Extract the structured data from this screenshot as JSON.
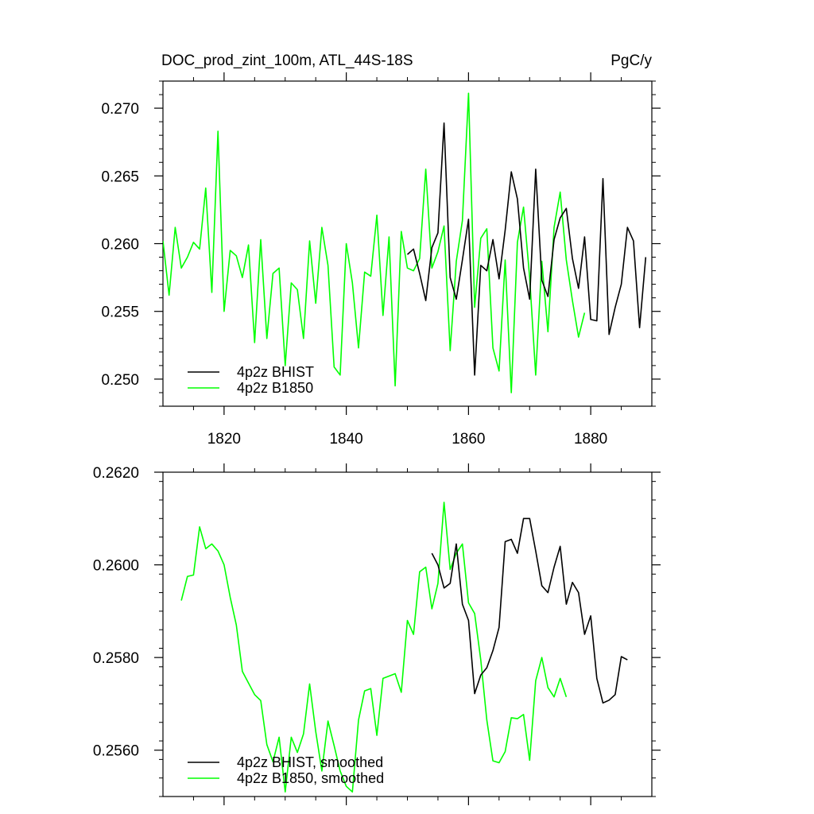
{
  "header": {
    "title": "DOC_prod_zint_100m, ATL_44S-18S",
    "units": "PgC/y"
  },
  "chart_data": [
    {
      "type": "line",
      "xlim": [
        1810,
        1890
      ],
      "ylim": [
        0.248,
        0.272
      ],
      "xticks": [
        1820,
        1840,
        1860,
        1880
      ],
      "xtick_labels": [
        "1820",
        "1840",
        "1860",
        "1880"
      ],
      "yticks": [
        0.25,
        0.255,
        0.26,
        0.265,
        0.27
      ],
      "ytick_labels": [
        "0.250",
        "0.255",
        "0.260",
        "0.265",
        "0.270"
      ],
      "legend_position": "bottom-left",
      "series": [
        {
          "name": "4p2z BHIST",
          "color": "#000000",
          "x": [
            1850,
            1851,
            1852,
            1853,
            1854,
            1855,
            1856,
            1857,
            1858,
            1859,
            1860,
            1861,
            1862,
            1863,
            1864,
            1865,
            1866,
            1867,
            1868,
            1869,
            1870,
            1871,
            1872,
            1873,
            1874,
            1875,
            1876,
            1877,
            1878,
            1879,
            1880,
            1881,
            1882,
            1883,
            1884,
            1885,
            1886,
            1887,
            1888,
            1889
          ],
          "y": [
            0.2592,
            0.2596,
            0.2578,
            0.2558,
            0.2597,
            0.2608,
            0.2689,
            0.2575,
            0.2559,
            0.2588,
            0.2618,
            0.2503,
            0.2584,
            0.258,
            0.2603,
            0.2574,
            0.261,
            0.2653,
            0.2633,
            0.2582,
            0.2559,
            0.2655,
            0.2573,
            0.2561,
            0.2603,
            0.2619,
            0.2626,
            0.2589,
            0.2567,
            0.2605,
            0.2544,
            0.2543,
            0.2648,
            0.2533,
            0.2553,
            0.257,
            0.2612,
            0.2602,
            0.2538,
            0.259
          ]
        },
        {
          "name": "4p2z B1850",
          "color": "#00ff00",
          "x": [
            1810,
            1811,
            1812,
            1813,
            1814,
            1815,
            1816,
            1817,
            1818,
            1819,
            1820,
            1821,
            1822,
            1823,
            1824,
            1825,
            1826,
            1827,
            1828,
            1829,
            1830,
            1831,
            1832,
            1833,
            1834,
            1835,
            1836,
            1837,
            1838,
            1839,
            1840,
            1841,
            1842,
            1843,
            1844,
            1845,
            1846,
            1847,
            1848,
            1849,
            1850,
            1851,
            1852,
            1853,
            1854,
            1855,
            1856,
            1857,
            1858,
            1859,
            1860,
            1861,
            1862,
            1863,
            1864,
            1865,
            1866,
            1867,
            1868,
            1869,
            1870,
            1871,
            1872,
            1873,
            1874,
            1875,
            1876,
            1877,
            1878,
            1879
          ],
          "y": [
            0.2602,
            0.2562,
            0.2612,
            0.2582,
            0.259,
            0.2601,
            0.2596,
            0.2641,
            0.2564,
            0.2683,
            0.255,
            0.2595,
            0.2591,
            0.2575,
            0.2599,
            0.2527,
            0.2603,
            0.253,
            0.2578,
            0.2582,
            0.251,
            0.2571,
            0.2566,
            0.253,
            0.2602,
            0.2556,
            0.2612,
            0.2584,
            0.2509,
            0.2503,
            0.26,
            0.2571,
            0.2523,
            0.2579,
            0.2576,
            0.2621,
            0.2547,
            0.2605,
            0.2495,
            0.2609,
            0.2582,
            0.258,
            0.2589,
            0.2655,
            0.2582,
            0.2594,
            0.2613,
            0.2521,
            0.2587,
            0.2617,
            0.2711,
            0.2553,
            0.2604,
            0.2611,
            0.2523,
            0.2506,
            0.2588,
            0.249,
            0.2601,
            0.2627,
            0.2575,
            0.2503,
            0.2587,
            0.2535,
            0.2612,
            0.2638,
            0.2588,
            0.2558,
            0.2531,
            0.2549
          ]
        }
      ]
    },
    {
      "type": "line",
      "xlim": [
        1810,
        1890
      ],
      "ylim": [
        0.255,
        0.262
      ],
      "xticks": [
        1820,
        1840,
        1860,
        1880
      ],
      "yticks": [
        0.256,
        0.258,
        0.26,
        0.262
      ],
      "ytick_labels": [
        "0.2560",
        "0.2580",
        "0.2600",
        "0.2620"
      ],
      "legend_position": "bottom-left",
      "series": [
        {
          "name": "4p2z BHIST, smoothed",
          "color": "#000000",
          "x": [
            1854,
            1855,
            1856,
            1857,
            1858,
            1859,
            1860,
            1861,
            1862,
            1863,
            1864,
            1865,
            1866,
            1867,
            1868,
            1869,
            1870,
            1871,
            1872,
            1873,
            1874,
            1875,
            1876,
            1877,
            1878,
            1879,
            1880,
            1881,
            1882,
            1883,
            1884,
            1885,
            1886
          ],
          "y": [
            0.26025,
            0.26,
            0.2595,
            0.2596,
            0.26045,
            0.25915,
            0.2588,
            0.25722,
            0.25762,
            0.25778,
            0.25815,
            0.25865,
            0.2605,
            0.26055,
            0.26025,
            0.261,
            0.261,
            0.2603,
            0.25955,
            0.2594,
            0.25995,
            0.2604,
            0.25915,
            0.25962,
            0.2594,
            0.2585,
            0.2589,
            0.25755,
            0.25702,
            0.25708,
            0.2572,
            0.25802,
            0.25795
          ]
        },
        {
          "name": "4p2z B1850, smoothed",
          "color": "#00ff00",
          "x": [
            1813,
            1814,
            1815,
            1816,
            1817,
            1818,
            1819,
            1820,
            1821,
            1822,
            1823,
            1824,
            1825,
            1826,
            1827,
            1828,
            1829,
            1830,
            1831,
            1832,
            1833,
            1834,
            1835,
            1836,
            1837,
            1838,
            1839,
            1840,
            1841,
            1842,
            1843,
            1844,
            1845,
            1846,
            1847,
            1848,
            1849,
            1850,
            1851,
            1852,
            1853,
            1854,
            1855,
            1856,
            1857,
            1858,
            1859,
            1860,
            1861,
            1862,
            1863,
            1864,
            1865,
            1866,
            1867,
            1868,
            1869,
            1870,
            1871,
            1872,
            1873,
            1874,
            1875,
            1876
          ],
          "y": [
            0.25923,
            0.25975,
            0.25978,
            0.26082,
            0.26035,
            0.26045,
            0.2603,
            0.26,
            0.2593,
            0.2587,
            0.2577,
            0.25745,
            0.2572,
            0.25707,
            0.25612,
            0.25575,
            0.25628,
            0.2551,
            0.25628,
            0.25595,
            0.25635,
            0.25743,
            0.2564,
            0.25555,
            0.25663,
            0.2561,
            0.25555,
            0.25522,
            0.2551,
            0.25665,
            0.25728,
            0.25733,
            0.25632,
            0.25755,
            0.2576,
            0.25765,
            0.25725,
            0.2588,
            0.2585,
            0.25985,
            0.25995,
            0.25905,
            0.2596,
            0.26135,
            0.2599,
            0.26025,
            0.26045,
            0.25918,
            0.25895,
            0.25795,
            0.25665,
            0.25577,
            0.25573,
            0.25597,
            0.2567,
            0.25668,
            0.25677,
            0.25578,
            0.2575,
            0.258,
            0.25735,
            0.25715,
            0.25755,
            0.25715
          ]
        }
      ]
    }
  ]
}
